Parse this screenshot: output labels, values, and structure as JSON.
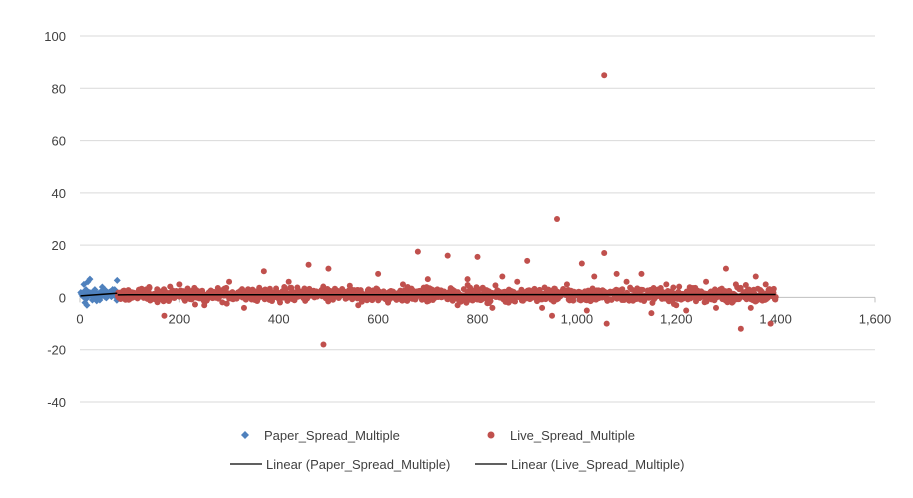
{
  "chart_data": {
    "type": "scatter",
    "xlim": [
      0,
      1600
    ],
    "ylim": [
      -40,
      100
    ],
    "x_ticks": [
      0,
      200,
      400,
      600,
      800,
      1000,
      1200,
      1400,
      1600
    ],
    "x_tick_labels": [
      "0",
      "200",
      "400",
      "600",
      "800",
      "1,000",
      "1,200",
      "1,400",
      "1,600"
    ],
    "y_ticks": [
      100,
      80,
      60,
      40,
      20,
      0,
      -20,
      -40
    ],
    "y_tick_labels": [
      "100",
      "80",
      "60",
      "40",
      "20",
      "0",
      "-20",
      "-40"
    ],
    "grid": "horizontal",
    "legend_position": "bottom",
    "series": [
      {
        "name": "Paper_Spread_Multiple",
        "marker": "diamond",
        "color": "#4F81BD",
        "x_range": [
          1,
          75
        ],
        "points": [
          [
            8,
            5
          ],
          [
            12,
            3
          ],
          [
            16,
            6
          ],
          [
            20,
            7
          ],
          [
            30,
            3
          ],
          [
            45,
            4
          ],
          [
            50,
            3
          ],
          [
            55,
            2
          ],
          [
            60,
            2
          ],
          [
            70,
            3
          ],
          [
            75,
            6.5
          ],
          [
            10,
            -2
          ],
          [
            14,
            -3
          ],
          [
            25,
            -1
          ],
          [
            35,
            -0.5
          ],
          [
            40,
            -1
          ]
        ]
      },
      {
        "name": "Live_Spread_Multiple",
        "marker": "circle",
        "color": "#C0504D",
        "x_range": [
          76,
          1400
        ],
        "points": [
          [
            1055,
            85
          ],
          [
            960,
            30
          ],
          [
            490,
            -18
          ],
          [
            680,
            17.5
          ],
          [
            1055,
            17
          ],
          [
            740,
            16
          ],
          [
            800,
            15.5
          ],
          [
            900,
            14
          ],
          [
            1010,
            13
          ],
          [
            1300,
            11
          ],
          [
            460,
            12.5
          ],
          [
            500,
            11
          ],
          [
            1035,
            8
          ],
          [
            1080,
            9
          ],
          [
            370,
            10
          ],
          [
            850,
            8
          ],
          [
            600,
            9
          ],
          [
            1130,
            9
          ],
          [
            1360,
            8
          ],
          [
            1330,
            -12
          ],
          [
            1060,
            -10
          ],
          [
            1390,
            -10
          ],
          [
            170,
            -7
          ],
          [
            950,
            -7
          ],
          [
            1150,
            -6
          ],
          [
            1220,
            -5
          ],
          [
            200,
            5
          ],
          [
            300,
            6
          ],
          [
            250,
            -3
          ],
          [
            420,
            6
          ],
          [
            650,
            5
          ],
          [
            700,
            7
          ],
          [
            780,
            7
          ],
          [
            880,
            6
          ],
          [
            980,
            5
          ],
          [
            1100,
            6
          ],
          [
            1180,
            5
          ],
          [
            1260,
            6
          ],
          [
            1320,
            5
          ],
          [
            1380,
            5
          ],
          [
            330,
            -4
          ],
          [
            560,
            -3
          ],
          [
            620,
            -2
          ],
          [
            760,
            -3
          ],
          [
            830,
            -4
          ],
          [
            930,
            -4
          ],
          [
            1020,
            -5
          ],
          [
            1200,
            -3
          ],
          [
            1280,
            -4
          ],
          [
            1350,
            -4
          ]
        ]
      }
    ],
    "trendlines": [
      {
        "name": "Linear (Paper_Spread_Multiple)",
        "color": "#000000",
        "x": [
          1,
          75
        ],
        "y": [
          0.6,
          1.6
        ]
      },
      {
        "name": "Linear (Live_Spread_Multiple)",
        "color": "#000000",
        "x": [
          76,
          1400
        ],
        "y": [
          1.0,
          1.1
        ]
      }
    ]
  }
}
